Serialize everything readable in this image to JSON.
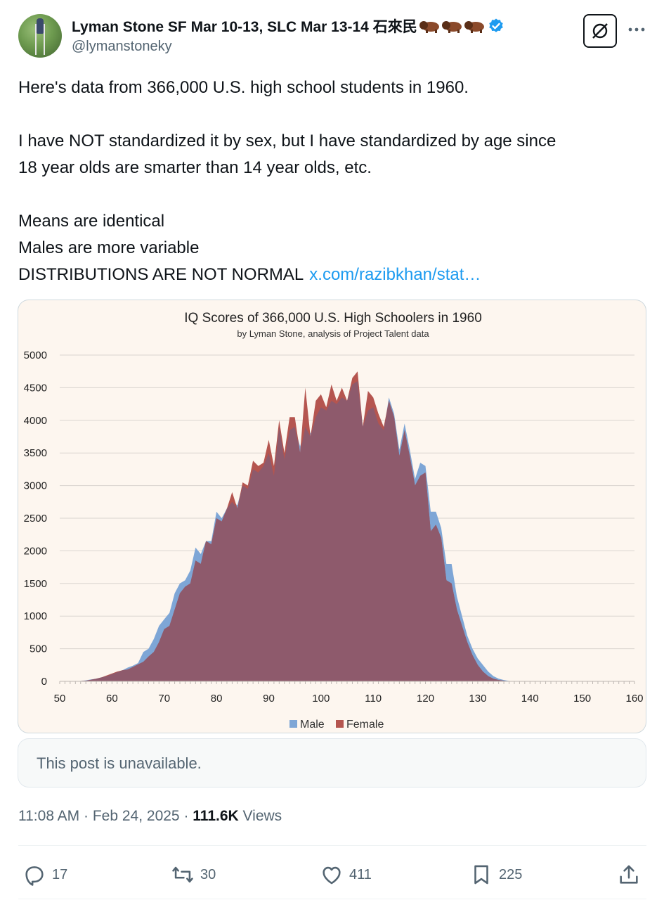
{
  "author": {
    "display_name": "Lyman Stone SF Mar 10-13, SLC Mar 13-14 石來民",
    "handle": "@lymanstoneky",
    "verified": true
  },
  "post": {
    "lines": [
      "Here's data from 366,000 U.S. high school students in 1960.",
      "",
      "I have NOT standardized it by sex, but I have standardized by age since",
      "18 year olds are smarter than 14 year olds, etc.",
      "",
      "Means are identical",
      "Males are more variable",
      "DISTRIBUTIONS ARE NOT NORMAL"
    ],
    "link_text": "x.com/razibkhan/stat…"
  },
  "chart_data": {
    "type": "area",
    "title": "IQ Scores of 366,000 U.S. High Schoolers in 1960",
    "subtitle": "by Lyman Stone, analysis of Project Talent data",
    "xlim": [
      50,
      160
    ],
    "ylim": [
      0,
      5000
    ],
    "xticks": [
      50,
      60,
      70,
      80,
      90,
      100,
      110,
      120,
      130,
      140,
      150,
      160
    ],
    "yticks": [
      0,
      500,
      1000,
      1500,
      2000,
      2500,
      3000,
      3500,
      4000,
      4500,
      5000
    ],
    "grid": true,
    "legend_position": "bottom",
    "colors": {
      "Male": "#7ea6d6",
      "Female": "#b5554f"
    },
    "series": [
      {
        "name": "Male",
        "x": [
          50,
          51,
          52,
          53,
          54,
          55,
          56,
          57,
          58,
          59,
          60,
          61,
          62,
          63,
          64,
          65,
          66,
          67,
          68,
          69,
          70,
          71,
          72,
          73,
          74,
          75,
          76,
          77,
          78,
          79,
          80,
          81,
          82,
          83,
          84,
          85,
          86,
          87,
          88,
          89,
          90,
          91,
          92,
          93,
          94,
          95,
          96,
          97,
          98,
          99,
          100,
          101,
          102,
          103,
          104,
          105,
          106,
          107,
          108,
          109,
          110,
          111,
          112,
          113,
          114,
          115,
          116,
          117,
          118,
          119,
          120,
          121,
          122,
          123,
          124,
          125,
          126,
          127,
          128,
          129,
          130,
          131,
          132,
          133,
          134,
          135,
          136,
          137,
          138,
          139,
          140
        ],
        "values": [
          0,
          0,
          0,
          0,
          5,
          15,
          30,
          40,
          60,
          80,
          110,
          140,
          170,
          210,
          240,
          280,
          450,
          500,
          650,
          850,
          950,
          1050,
          1350,
          1500,
          1550,
          1700,
          2050,
          1950,
          2150,
          2150,
          2600,
          2500,
          2650,
          2750,
          2700,
          3000,
          2950,
          3250,
          3200,
          3300,
          3500,
          3150,
          3900,
          3400,
          3850,
          3900,
          3600,
          3900,
          3800,
          4050,
          4200,
          4150,
          4300,
          4250,
          4350,
          4300,
          4550,
          4600,
          3900,
          4150,
          4200,
          3950,
          3850,
          4350,
          4100,
          3550,
          3950,
          3550,
          3100,
          3350,
          3300,
          2600,
          2600,
          2350,
          1800,
          1800,
          1300,
          1000,
          700,
          500,
          350,
          250,
          150,
          80,
          40,
          20,
          5,
          0,
          0,
          0,
          0
        ]
      },
      {
        "name": "Female",
        "x": [
          50,
          51,
          52,
          53,
          54,
          55,
          56,
          57,
          58,
          59,
          60,
          61,
          62,
          63,
          64,
          65,
          66,
          67,
          68,
          69,
          70,
          71,
          72,
          73,
          74,
          75,
          76,
          77,
          78,
          79,
          80,
          81,
          82,
          83,
          84,
          85,
          86,
          87,
          88,
          89,
          90,
          91,
          92,
          93,
          94,
          95,
          96,
          97,
          98,
          99,
          100,
          101,
          102,
          103,
          104,
          105,
          106,
          107,
          108,
          109,
          110,
          111,
          112,
          113,
          114,
          115,
          116,
          117,
          118,
          119,
          120,
          121,
          122,
          123,
          124,
          125,
          126,
          127,
          128,
          129,
          130,
          131,
          132,
          133,
          134,
          135,
          136,
          137,
          138,
          139,
          140
        ],
        "values": [
          0,
          0,
          0,
          0,
          5,
          10,
          25,
          40,
          60,
          90,
          120,
          150,
          170,
          180,
          220,
          260,
          300,
          380,
          450,
          600,
          800,
          850,
          1100,
          1350,
          1450,
          1500,
          1850,
          1800,
          2150,
          2100,
          2500,
          2450,
          2650,
          2900,
          2650,
          3050,
          3000,
          3380,
          3300,
          3350,
          3700,
          3300,
          4000,
          3500,
          4050,
          4050,
          3500,
          4500,
          3750,
          4300,
          4400,
          4200,
          4550,
          4300,
          4500,
          4300,
          4650,
          4750,
          3900,
          4450,
          4350,
          4100,
          3900,
          4300,
          4050,
          3450,
          3850,
          3450,
          3000,
          3150,
          3200,
          2300,
          2400,
          2200,
          1550,
          1500,
          1100,
          850,
          600,
          400,
          250,
          150,
          80,
          40,
          20,
          10,
          0,
          0,
          0,
          0,
          0
        ]
      }
    ],
    "legend": [
      "Male",
      "Female"
    ]
  },
  "quoted_post": {
    "text": "This post is unavailable."
  },
  "meta": {
    "time": "11:08 AM",
    "date": "Feb 24, 2025",
    "views_count": "111.6K",
    "views_label": "Views"
  },
  "actions": {
    "replies": "17",
    "reposts": "30",
    "likes": "411",
    "bookmarks": "225"
  }
}
